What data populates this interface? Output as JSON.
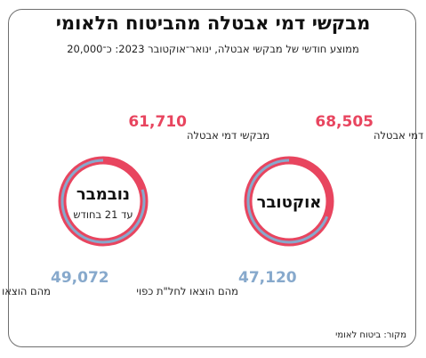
{
  "title": "מבקשי דמי אבטלה מהביטוח הלאומי",
  "subtitle": "ממוצע חודשי של מבקשי אבטלה, ינואר־אוקטובר 2023: כ־20,000",
  "source": "מקור: ביטוח לאומי",
  "colors": {
    "applicants": "#e8455f",
    "left_for_unpaid_leave": "#87a9cc"
  },
  "chart_data": [
    {
      "type": "donut",
      "month_label": "אוקטובר",
      "sub_label": "",
      "applicants_value": "68,505",
      "applicants_label": "מבקשי דמי אבטלה",
      "unpaid_leave_value": "47,120",
      "unpaid_leave_label": "מהם הוצאו לחל\"ת כפוי",
      "applicants": 68505,
      "unpaid_leave": 47120
    },
    {
      "type": "donut",
      "month_label": "נובמבר",
      "sub_label": "עד 21 בחודש",
      "applicants_value": "61,710",
      "applicants_label": "מבקשי דמי אבטלה",
      "unpaid_leave_value": "49,072",
      "unpaid_leave_label": "מהם הוצאו לחל\"ת כפוי",
      "applicants": 61710,
      "unpaid_leave": 49072
    }
  ]
}
